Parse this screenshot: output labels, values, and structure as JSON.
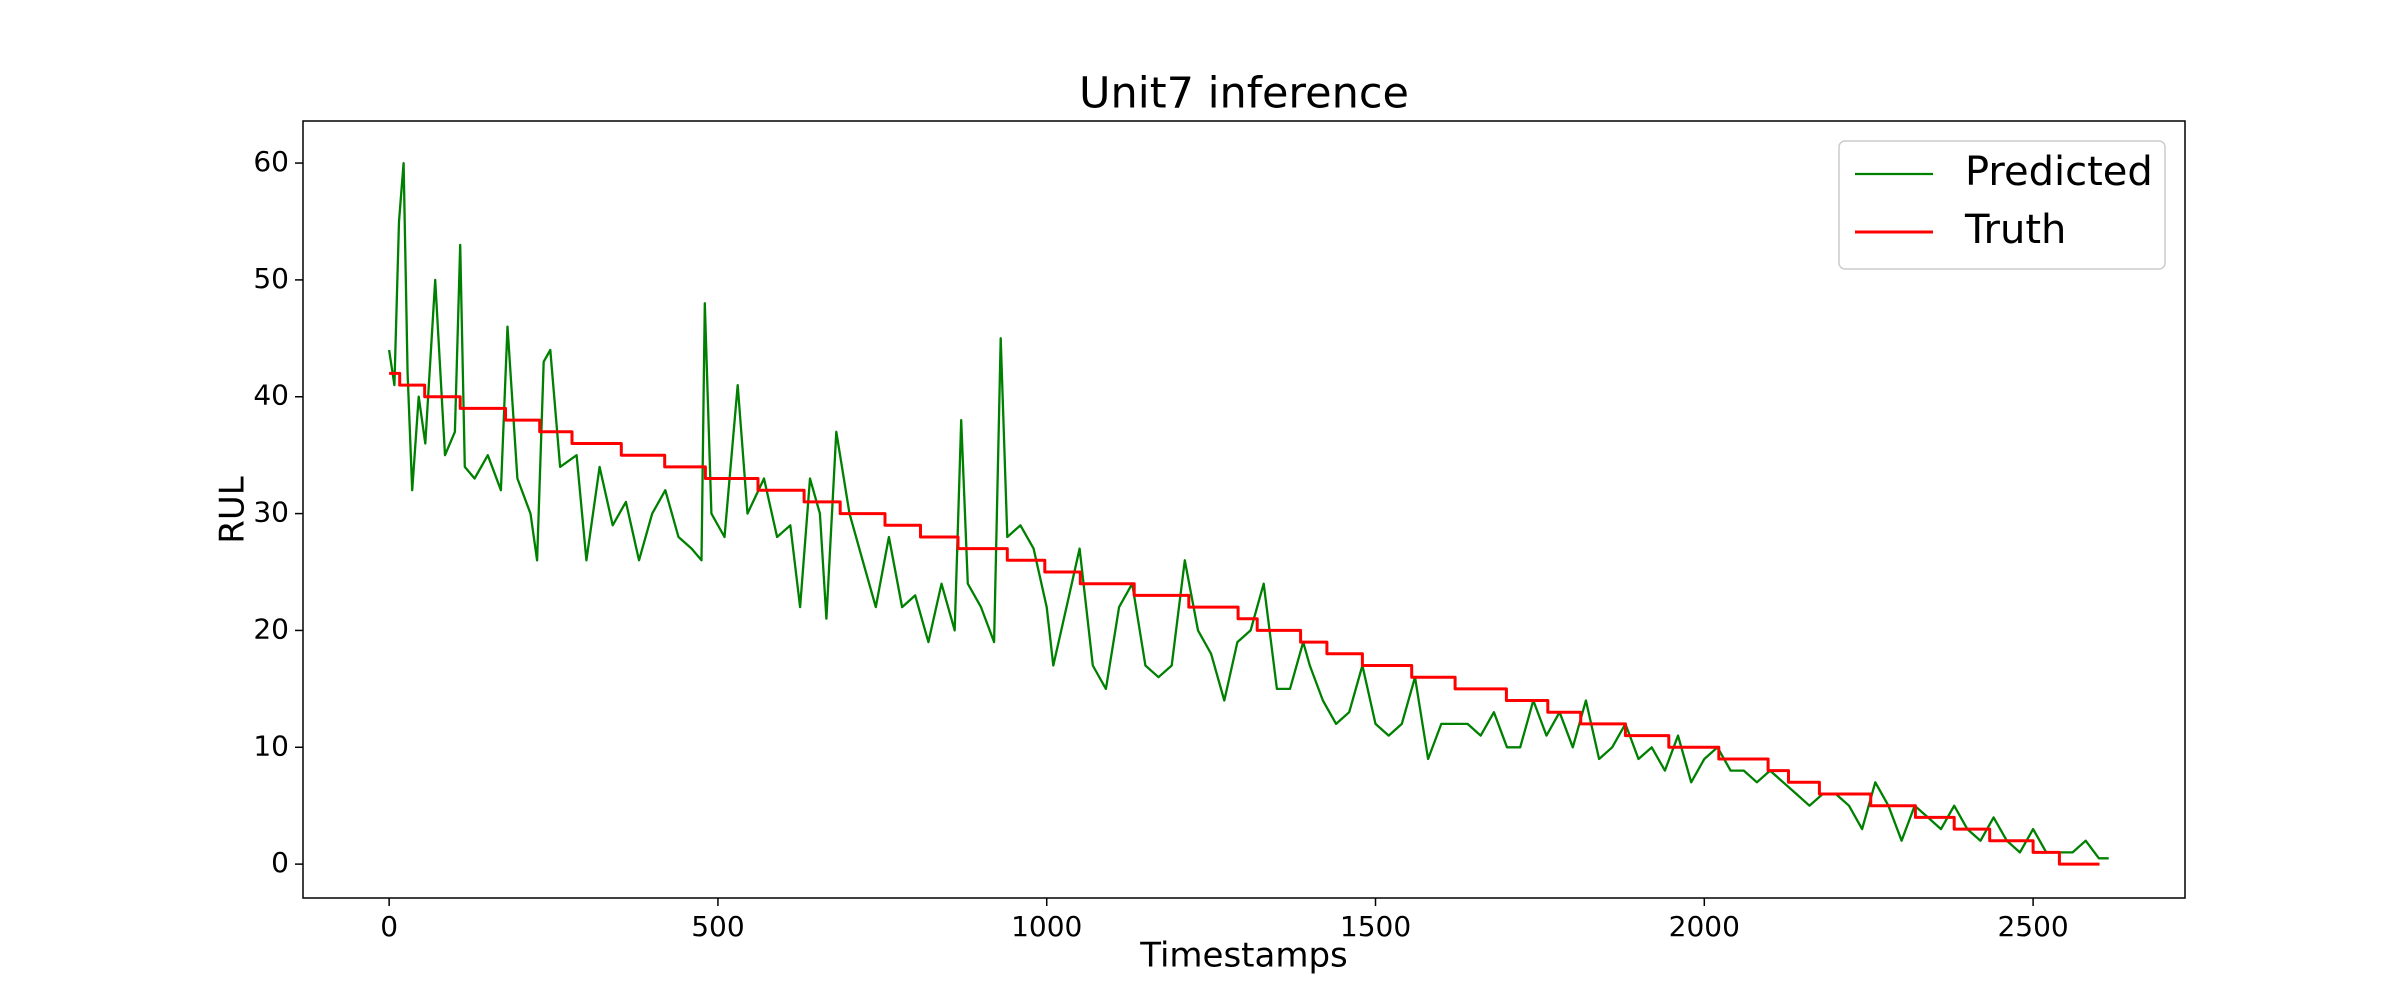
{
  "chart_data": {
    "type": "line",
    "title": "Unit7 inference",
    "x_label": "Timestamps",
    "y_label": "RUL",
    "xlim": [
      -131,
      2731
    ],
    "ylim": [
      -2.9,
      63.6
    ],
    "xticks": [
      0,
      500,
      1000,
      1500,
      2000,
      2500
    ],
    "yticks": [
      0,
      10,
      20,
      30,
      40,
      50,
      60
    ],
    "legend": "upper right",
    "series": [
      {
        "name": "Predicted",
        "color": "#008000",
        "drawstyle": "default",
        "x": [
          0,
          8,
          15,
          22,
          28,
          35,
          45,
          55,
          70,
          85,
          100,
          108,
          115,
          130,
          150,
          170,
          180,
          195,
          215,
          225,
          235,
          245,
          260,
          285,
          300,
          320,
          340,
          360,
          380,
          400,
          420,
          440,
          460,
          475,
          480,
          490,
          510,
          530,
          545,
          570,
          590,
          610,
          625,
          640,
          655,
          665,
          680,
          700,
          720,
          740,
          760,
          780,
          800,
          820,
          840,
          860,
          870,
          880,
          900,
          920,
          930,
          940,
          960,
          980,
          1000,
          1010,
          1030,
          1050,
          1070,
          1090,
          1110,
          1130,
          1150,
          1170,
          1190,
          1210,
          1230,
          1250,
          1270,
          1290,
          1310,
          1330,
          1350,
          1370,
          1390,
          1400,
          1420,
          1440,
          1460,
          1480,
          1500,
          1520,
          1540,
          1560,
          1580,
          1600,
          1620,
          1640,
          1660,
          1680,
          1700,
          1720,
          1740,
          1760,
          1780,
          1800,
          1820,
          1840,
          1860,
          1880,
          1900,
          1920,
          1940,
          1960,
          1980,
          2000,
          2020,
          2040,
          2060,
          2080,
          2100,
          2120,
          2140,
          2160,
          2180,
          2200,
          2220,
          2240,
          2260,
          2280,
          2300,
          2320,
          2340,
          2360,
          2380,
          2400,
          2420,
          2440,
          2460,
          2480,
          2500,
          2520,
          2540,
          2560,
          2580,
          2600,
          2615
        ],
        "values": [
          44,
          41,
          55,
          60,
          42,
          32,
          40,
          36,
          50,
          35,
          37,
          53,
          34,
          33,
          35,
          32,
          46,
          33,
          30,
          26,
          43,
          44,
          34,
          35,
          26,
          34,
          29,
          31,
          26,
          30,
          32,
          28,
          27,
          26,
          48,
          30,
          28,
          41,
          30,
          33,
          28,
          29,
          22,
          33,
          30,
          21,
          37,
          30,
          26,
          22,
          28,
          22,
          23,
          19,
          24,
          20,
          38,
          24,
          22,
          19,
          45,
          28,
          29,
          27,
          22,
          17,
          22,
          27,
          17,
          15,
          22,
          24,
          17,
          16,
          17,
          26,
          20,
          18,
          14,
          19,
          20,
          24,
          15,
          15,
          19,
          17,
          14,
          12,
          13,
          17,
          12,
          11,
          12,
          16,
          9,
          12,
          12,
          12,
          11,
          13,
          10,
          10,
          14,
          11,
          13,
          10,
          14,
          9,
          10,
          12,
          9,
          10,
          8,
          11,
          7,
          9,
          10,
          8,
          8,
          7,
          8,
          7,
          6,
          5,
          6,
          6,
          5,
          3,
          7,
          5,
          2,
          5,
          4,
          3,
          5,
          3,
          2,
          4,
          2,
          1,
          3,
          1,
          1,
          1,
          2,
          0.5,
          0.5
        ]
      },
      {
        "name": "Truth",
        "color": "#ff0000",
        "drawstyle": "steps-post",
        "x": [
          0,
          16,
          54,
          108,
          177,
          229,
          278,
          353,
          419,
          481,
          561,
          631,
          686,
          754,
          808,
          865,
          940,
          997,
          1051,
          1133,
          1216,
          1291,
          1320,
          1386,
          1426,
          1480,
          1555,
          1621,
          1699,
          1762,
          1812,
          1880,
          1946,
          2022,
          2097,
          2128,
          2175,
          2253,
          2321,
          2380,
          2434,
          2500,
          2540,
          2601
        ],
        "values": [
          42,
          41,
          40,
          39,
          38,
          37,
          36,
          35,
          34,
          33,
          32,
          31,
          30,
          29,
          28,
          27,
          26,
          25,
          24,
          23,
          22,
          21,
          20,
          19,
          18,
          17,
          16,
          15,
          14,
          13,
          12,
          11,
          10,
          9,
          8,
          7,
          6,
          5,
          4,
          3,
          2,
          1,
          0,
          0
        ]
      }
    ]
  }
}
